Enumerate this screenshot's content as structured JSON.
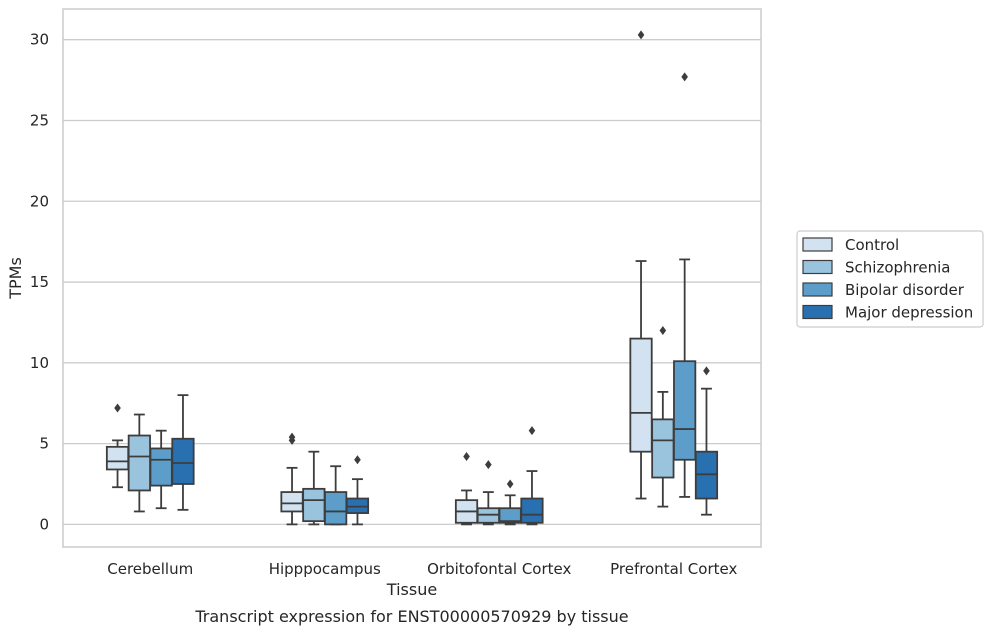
{
  "chart_data": {
    "type": "box",
    "title": "",
    "caption": "Transcript expression for ENST00000570929 by tissue",
    "xlabel": "Tissue",
    "ylabel": "TPMs",
    "ylim": [
      -1.4,
      31.9
    ],
    "yticks": [
      0,
      5,
      10,
      15,
      20,
      25,
      30
    ],
    "grid": "horizontal",
    "legend_position": "right",
    "categories": [
      "Cerebellum",
      "Hipppocampus",
      "Orbitofontal Cortex",
      "Prefrontal Cortex"
    ],
    "series": [
      {
        "name": "Control",
        "color": "#d3e2f1",
        "boxes": [
          {
            "whisker_low": 2.3,
            "q1": 3.4,
            "median": 3.9,
            "q3": 4.8,
            "whisker_high": 5.2,
            "outliers": [
              7.2
            ]
          },
          {
            "whisker_low": 0.0,
            "q1": 0.8,
            "median": 1.3,
            "q3": 2.0,
            "whisker_high": 3.5,
            "outliers": [
              5.2,
              5.4
            ]
          },
          {
            "whisker_low": 0.0,
            "q1": 0.1,
            "median": 0.8,
            "q3": 1.5,
            "whisker_high": 2.1,
            "outliers": [
              4.2
            ]
          },
          {
            "whisker_low": 1.6,
            "q1": 4.5,
            "median": 6.9,
            "q3": 11.5,
            "whisker_high": 16.3,
            "outliers": [
              30.3
            ]
          }
        ]
      },
      {
        "name": "Schizophrenia",
        "color": "#9ac4de",
        "boxes": [
          {
            "whisker_low": 0.8,
            "q1": 2.1,
            "median": 4.2,
            "q3": 5.5,
            "whisker_high": 6.8,
            "outliers": []
          },
          {
            "whisker_low": 0.0,
            "q1": 0.2,
            "median": 1.5,
            "q3": 2.2,
            "whisker_high": 4.5,
            "outliers": []
          },
          {
            "whisker_low": 0.0,
            "q1": 0.1,
            "median": 0.6,
            "q3": 1.0,
            "whisker_high": 2.0,
            "outliers": [
              3.7
            ]
          },
          {
            "whisker_low": 1.1,
            "q1": 2.9,
            "median": 5.2,
            "q3": 6.5,
            "whisker_high": 8.2,
            "outliers": [
              12.0
            ]
          }
        ]
      },
      {
        "name": "Bipolar disorder",
        "color": "#5c9ec9",
        "boxes": [
          {
            "whisker_low": 1.0,
            "q1": 2.4,
            "median": 4.0,
            "q3": 4.7,
            "whisker_high": 5.8,
            "outliers": []
          },
          {
            "whisker_low": 0.0,
            "q1": 0.0,
            "median": 0.8,
            "q3": 2.0,
            "whisker_high": 3.6,
            "outliers": []
          },
          {
            "whisker_low": 0.0,
            "q1": 0.1,
            "median": 0.2,
            "q3": 1.0,
            "whisker_high": 1.8,
            "outliers": [
              2.5
            ]
          },
          {
            "whisker_low": 1.7,
            "q1": 4.0,
            "median": 5.9,
            "q3": 10.1,
            "whisker_high": 16.4,
            "outliers": [
              27.7
            ]
          }
        ]
      },
      {
        "name": "Major depression",
        "color": "#2970b1",
        "boxes": [
          {
            "whisker_low": 0.9,
            "q1": 2.5,
            "median": 3.8,
            "q3": 5.3,
            "whisker_high": 8.0,
            "outliers": []
          },
          {
            "whisker_low": 0.0,
            "q1": 0.7,
            "median": 1.1,
            "q3": 1.6,
            "whisker_high": 2.8,
            "outliers": [
              4.0
            ]
          },
          {
            "whisker_low": 0.0,
            "q1": 0.1,
            "median": 0.6,
            "q3": 1.6,
            "whisker_high": 3.3,
            "outliers": [
              5.8
            ]
          },
          {
            "whisker_low": 0.6,
            "q1": 1.6,
            "median": 3.1,
            "q3": 4.5,
            "whisker_high": 8.4,
            "outliers": [
              9.5
            ]
          }
        ]
      }
    ]
  }
}
